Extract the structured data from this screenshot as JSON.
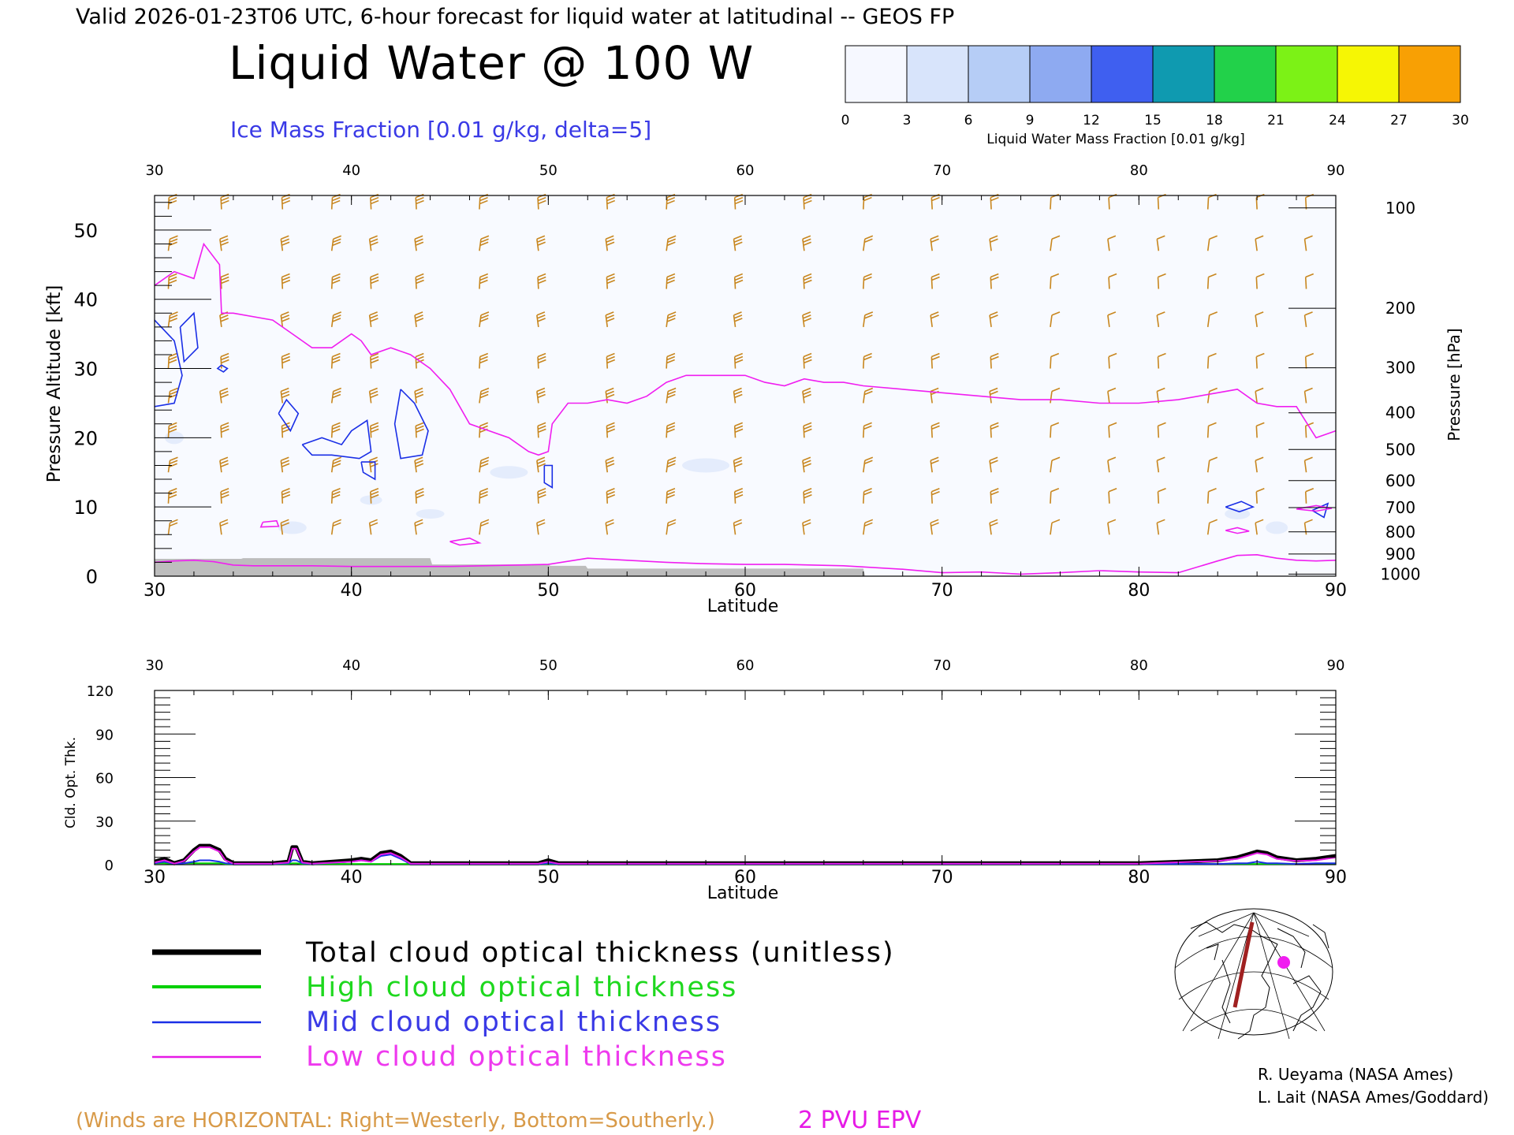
{
  "header": {
    "valid_line": "Valid 2026-01-23T06 UTC, 6-hour forecast for liquid water at latitudinal -- GEOS FP",
    "main_title": "Liquid Water @ 100 W",
    "ice_label": "Ice Mass Fraction [0.01 g/kg, delta=5]"
  },
  "colorbar": {
    "label": "Liquid Water Mass Fraction [0.01 g/kg]",
    "ticks": [
      "0",
      "3",
      "6",
      "9",
      "12",
      "15",
      "18",
      "21",
      "24",
      "27",
      "30"
    ],
    "colors": [
      "#f6f8ff",
      "#d8e4fb",
      "#b6cdf6",
      "#8eaaf1",
      "#3f5ff0",
      "#0f9ab0",
      "#22d14a",
      "#7cf216",
      "#f6f604",
      "#f8a004",
      "#f8480c"
    ]
  },
  "chart_data": [
    {
      "type": "heatmap",
      "title": "Liquid Water @ 100 W",
      "xlabel": "Latitude",
      "ylabel": "Pressure Altitude [kft]",
      "ylabel_right": "Pressure [hPa]",
      "xlim": [
        30,
        90
      ],
      "ylim": [
        0,
        55
      ],
      "x_ticks": [
        "30",
        "40",
        "50",
        "60",
        "70",
        "80",
        "90"
      ],
      "y_ticks": [
        "0",
        "10",
        "20",
        "30",
        "40",
        "50"
      ],
      "pressure_ticks": [
        {
          "label": "100",
          "kft": 53.2
        },
        {
          "label": "200",
          "kft": 38.7
        },
        {
          "label": "300",
          "kft": 30.1
        },
        {
          "label": "400",
          "kft": 23.6
        },
        {
          "label": "500",
          "kft": 18.3
        },
        {
          "label": "600",
          "kft": 13.8
        },
        {
          "label": "700",
          "kft": 9.9
        },
        {
          "label": "800",
          "kft": 6.4
        },
        {
          "label": "900",
          "kft": 3.2
        },
        {
          "label": "1000",
          "kft": 0.3
        }
      ],
      "epv_2pvu_line": {
        "lat": [
          30,
          31,
          32,
          32.5,
          33.3,
          33.4,
          34,
          36,
          37,
          38,
          39,
          40,
          40.5,
          41,
          42,
          43,
          44,
          45,
          46,
          47,
          48,
          49,
          49.5,
          50,
          50.2,
          51,
          52,
          53,
          54,
          55,
          56,
          57,
          58,
          59,
          60,
          61,
          62,
          63,
          64,
          65,
          66,
          68,
          70,
          72,
          74,
          76,
          78,
          80,
          82,
          84,
          85,
          86,
          87,
          88,
          89,
          90
        ],
        "kft": [
          42,
          44,
          43,
          48,
          45,
          38,
          38,
          37,
          35,
          33,
          33,
          35,
          34,
          32,
          33,
          32,
          30,
          27,
          22,
          21,
          20,
          18,
          17.5,
          18,
          22,
          25,
          25,
          25.5,
          25,
          26,
          28,
          29,
          29,
          29,
          29,
          28,
          27.5,
          28.5,
          28,
          28,
          27.5,
          27,
          26.5,
          26,
          25.5,
          25.5,
          25,
          25,
          25.5,
          26.5,
          27,
          25,
          24.5,
          24.5,
          20,
          21
        ]
      },
      "surface_kft": {
        "lat": [
          30,
          34.4,
          34.5,
          44,
          44.1,
          50,
          50.1,
          51.9,
          52,
          66,
          66.1,
          90
        ],
        "kft": [
          2.5,
          2.5,
          2.6,
          2.6,
          1.7,
          1.7,
          1.5,
          1.5,
          1.1,
          1.1,
          0,
          0
        ]
      },
      "low_epv_line": {
        "lat": [
          30,
          31,
          32,
          33,
          34,
          35,
          36,
          38,
          40,
          45,
          50,
          52,
          54,
          56,
          58,
          60,
          62,
          65,
          68,
          70,
          72,
          74,
          76,
          78,
          80,
          82,
          84,
          85,
          86,
          87,
          88,
          89,
          90
        ],
        "kft": [
          2,
          2.2,
          2.3,
          2.1,
          1.6,
          1.5,
          1.5,
          1.5,
          1.4,
          1.4,
          1.7,
          2.6,
          2.3,
          2,
          1.8,
          1.7,
          1.7,
          1.5,
          1,
          0.5,
          0.6,
          0.3,
          0.5,
          0.8,
          0.6,
          0.5,
          2.2,
          3,
          3.1,
          2.6,
          2.3,
          2.2,
          2.3
        ]
      },
      "ice_contours": [
        {
          "lat": [
            30,
            31,
            31.4,
            31,
            30
          ],
          "kft": [
            37,
            34,
            29,
            25,
            24.5
          ]
        },
        {
          "lat": [
            31.3,
            32,
            32.2,
            31.5,
            31.3
          ],
          "kft": [
            36,
            38,
            33,
            31,
            36
          ]
        },
        {
          "lat": [
            33.4,
            33.7,
            33.5,
            33.2,
            33.4
          ],
          "kft": [
            30.5,
            30,
            29.5,
            30,
            30.5
          ]
        },
        {
          "lat": [
            36.3,
            36.7,
            37.3,
            36.9,
            36.3
          ],
          "kft": [
            23.5,
            25.5,
            23.5,
            21,
            23.5
          ]
        },
        {
          "lat": [
            37.5,
            38.5,
            39.5,
            40,
            40.8,
            41,
            40.4,
            39,
            38,
            37.5
          ],
          "kft": [
            19,
            20,
            19,
            21,
            22.5,
            18,
            17,
            17.5,
            17.5,
            19
          ]
        },
        {
          "lat": [
            40.5,
            41.2,
            41.2,
            40.6,
            40.5
          ],
          "kft": [
            16.5,
            16.5,
            14,
            15,
            16.5
          ]
        },
        {
          "lat": [
            42.5,
            43.2,
            43.9,
            43.6,
            42.5,
            42.2,
            42.5
          ],
          "kft": [
            27,
            25,
            21,
            17.5,
            17,
            22,
            27
          ]
        },
        {
          "lat": [
            49.8,
            50.2,
            50.2,
            49.8,
            49.8
          ],
          "kft": [
            16,
            16,
            12.8,
            13.5,
            16
          ]
        },
        {
          "lat": [
            84.4,
            85.2,
            85.8,
            85.1,
            84.4
          ],
          "kft": [
            10,
            10.8,
            10,
            9.3,
            10
          ]
        },
        {
          "lat": [
            88.8,
            89.6,
            89.4,
            88.8
          ],
          "kft": [
            9.5,
            10.5,
            8.5,
            9.5
          ]
        }
      ],
      "magenta_contours": [
        {
          "lat": [
            35.5,
            36.2,
            36.3,
            35.4,
            35.5
          ],
          "kft": [
            7.8,
            8.0,
            7.2,
            7.1,
            7.8
          ]
        },
        {
          "lat": [
            45,
            46,
            46.5,
            45.5,
            45
          ],
          "kft": [
            5,
            5.5,
            4.8,
            4.5,
            5
          ]
        },
        {
          "lat": [
            84.4,
            85,
            85.6,
            85,
            84.4
          ],
          "kft": [
            6.6,
            7,
            6.5,
            6.2,
            6.6
          ]
        },
        {
          "lat": [
            88,
            89,
            89.8,
            89,
            88
          ],
          "kft": [
            9.7,
            10.2,
            9.8,
            9.4,
            9.7
          ]
        }
      ],
      "note": "(Winds are HORIZONTAL: Right=Westerly, Bottom=Southerly.)",
      "epv_label": "2 PVU EPV"
    },
    {
      "type": "line",
      "xlabel": "Latitude",
      "ylabel": "Cld. Opt. Thk.",
      "xlim": [
        30,
        90
      ],
      "ylim": [
        0,
        120
      ],
      "x_ticks": [
        "30",
        "40",
        "50",
        "60",
        "70",
        "80",
        "90"
      ],
      "y_ticks": [
        "0",
        "30",
        "60",
        "90",
        "120"
      ],
      "x": [
        30,
        30.5,
        31,
        31.5,
        32,
        32.3,
        32.8,
        33.3,
        33.6,
        34,
        36,
        36.8,
        37,
        37.2,
        37.5,
        38,
        40,
        40.5,
        41,
        41.5,
        42,
        42.5,
        43,
        45,
        49.5,
        50,
        50.5,
        52,
        60,
        64,
        70,
        80,
        84,
        85,
        85.5,
        86,
        86.5,
        87,
        88,
        89,
        90
      ],
      "series": [
        {
          "name": "Total cloud optical thickness (unitless)",
          "color": "#000000",
          "width": 5,
          "values": [
            2,
            4,
            1,
            3,
            10,
            13,
            13,
            10,
            4,
            1,
            1,
            2,
            12,
            12,
            2,
            1,
            3,
            4,
            3,
            8,
            9,
            6,
            1,
            1,
            1,
            3,
            1,
            1,
            1,
            1,
            1,
            1,
            3,
            5,
            7,
            9,
            8,
            5,
            3,
            4,
            6
          ]
        },
        {
          "name": "High cloud optical thickness",
          "color": "#00d000",
          "width": 2,
          "values": [
            1,
            1,
            0.5,
            1,
            1,
            1,
            1,
            1,
            0.5,
            0.5,
            0.5,
            0.5,
            1,
            1,
            0.5,
            0.5,
            0.5,
            0.5,
            0.5,
            0.5,
            0.5,
            0.5,
            0.5,
            0.5,
            0.5,
            0.5,
            0.5,
            0.5,
            0.5,
            0.5,
            0.5,
            0.5,
            0.5,
            0.5,
            0.5,
            0.5,
            0.5,
            0.5,
            0.5,
            0.5,
            0.5
          ]
        },
        {
          "name": "Mid cloud optical thickness",
          "color": "#1a2fe6",
          "width": 2,
          "values": [
            1,
            2,
            0.5,
            1,
            2,
            3,
            3,
            2,
            1,
            0.5,
            0.5,
            1,
            3,
            3,
            1,
            0.5,
            2,
            3,
            2,
            6,
            7,
            4,
            0.5,
            0.5,
            0.5,
            1,
            0.5,
            0.5,
            0.5,
            0.5,
            0.5,
            0.5,
            0.5,
            1,
            1,
            2,
            1,
            1,
            0.5,
            1,
            1
          ]
        },
        {
          "name": "Low cloud optical thickness",
          "color": "#e61ae6",
          "width": 2,
          "values": [
            1.5,
            3,
            0.7,
            2.5,
            9,
            12,
            12,
            9,
            3,
            0.7,
            0.7,
            1.5,
            11,
            11,
            1.5,
            0.7,
            2,
            3,
            2,
            7,
            8,
            5,
            0.7,
            0.7,
            0.7,
            2,
            0.7,
            0.7,
            0.7,
            0.7,
            0.7,
            0.7,
            2.5,
            4,
            6,
            8,
            7,
            4,
            2.5,
            3,
            5
          ]
        }
      ]
    }
  ],
  "legend": {
    "entries": [
      {
        "label": "Total cloud optical thickness (unitless)",
        "color": "#000000",
        "text_color": "#000000"
      },
      {
        "label": "High cloud optical thickness",
        "color": "#00d000",
        "text_color": "#1ed81e"
      },
      {
        "label": "Mid cloud optical thickness",
        "color": "#1a2fe6",
        "text_color": "#3a3ae6"
      },
      {
        "label": "Low cloud optical thickness",
        "color": "#e61ae6",
        "text_color": "#ee3aee"
      }
    ]
  },
  "credits": [
    "R. Ueyama (NASA Ames)",
    "L. Lait (NASA Ames/Goddard)"
  ],
  "colors": {
    "wind_barb": "#c8861e",
    "epv_line": "#f01ef0",
    "ice_contour": "#1a2fe6",
    "surface": "#bdbdbd"
  }
}
